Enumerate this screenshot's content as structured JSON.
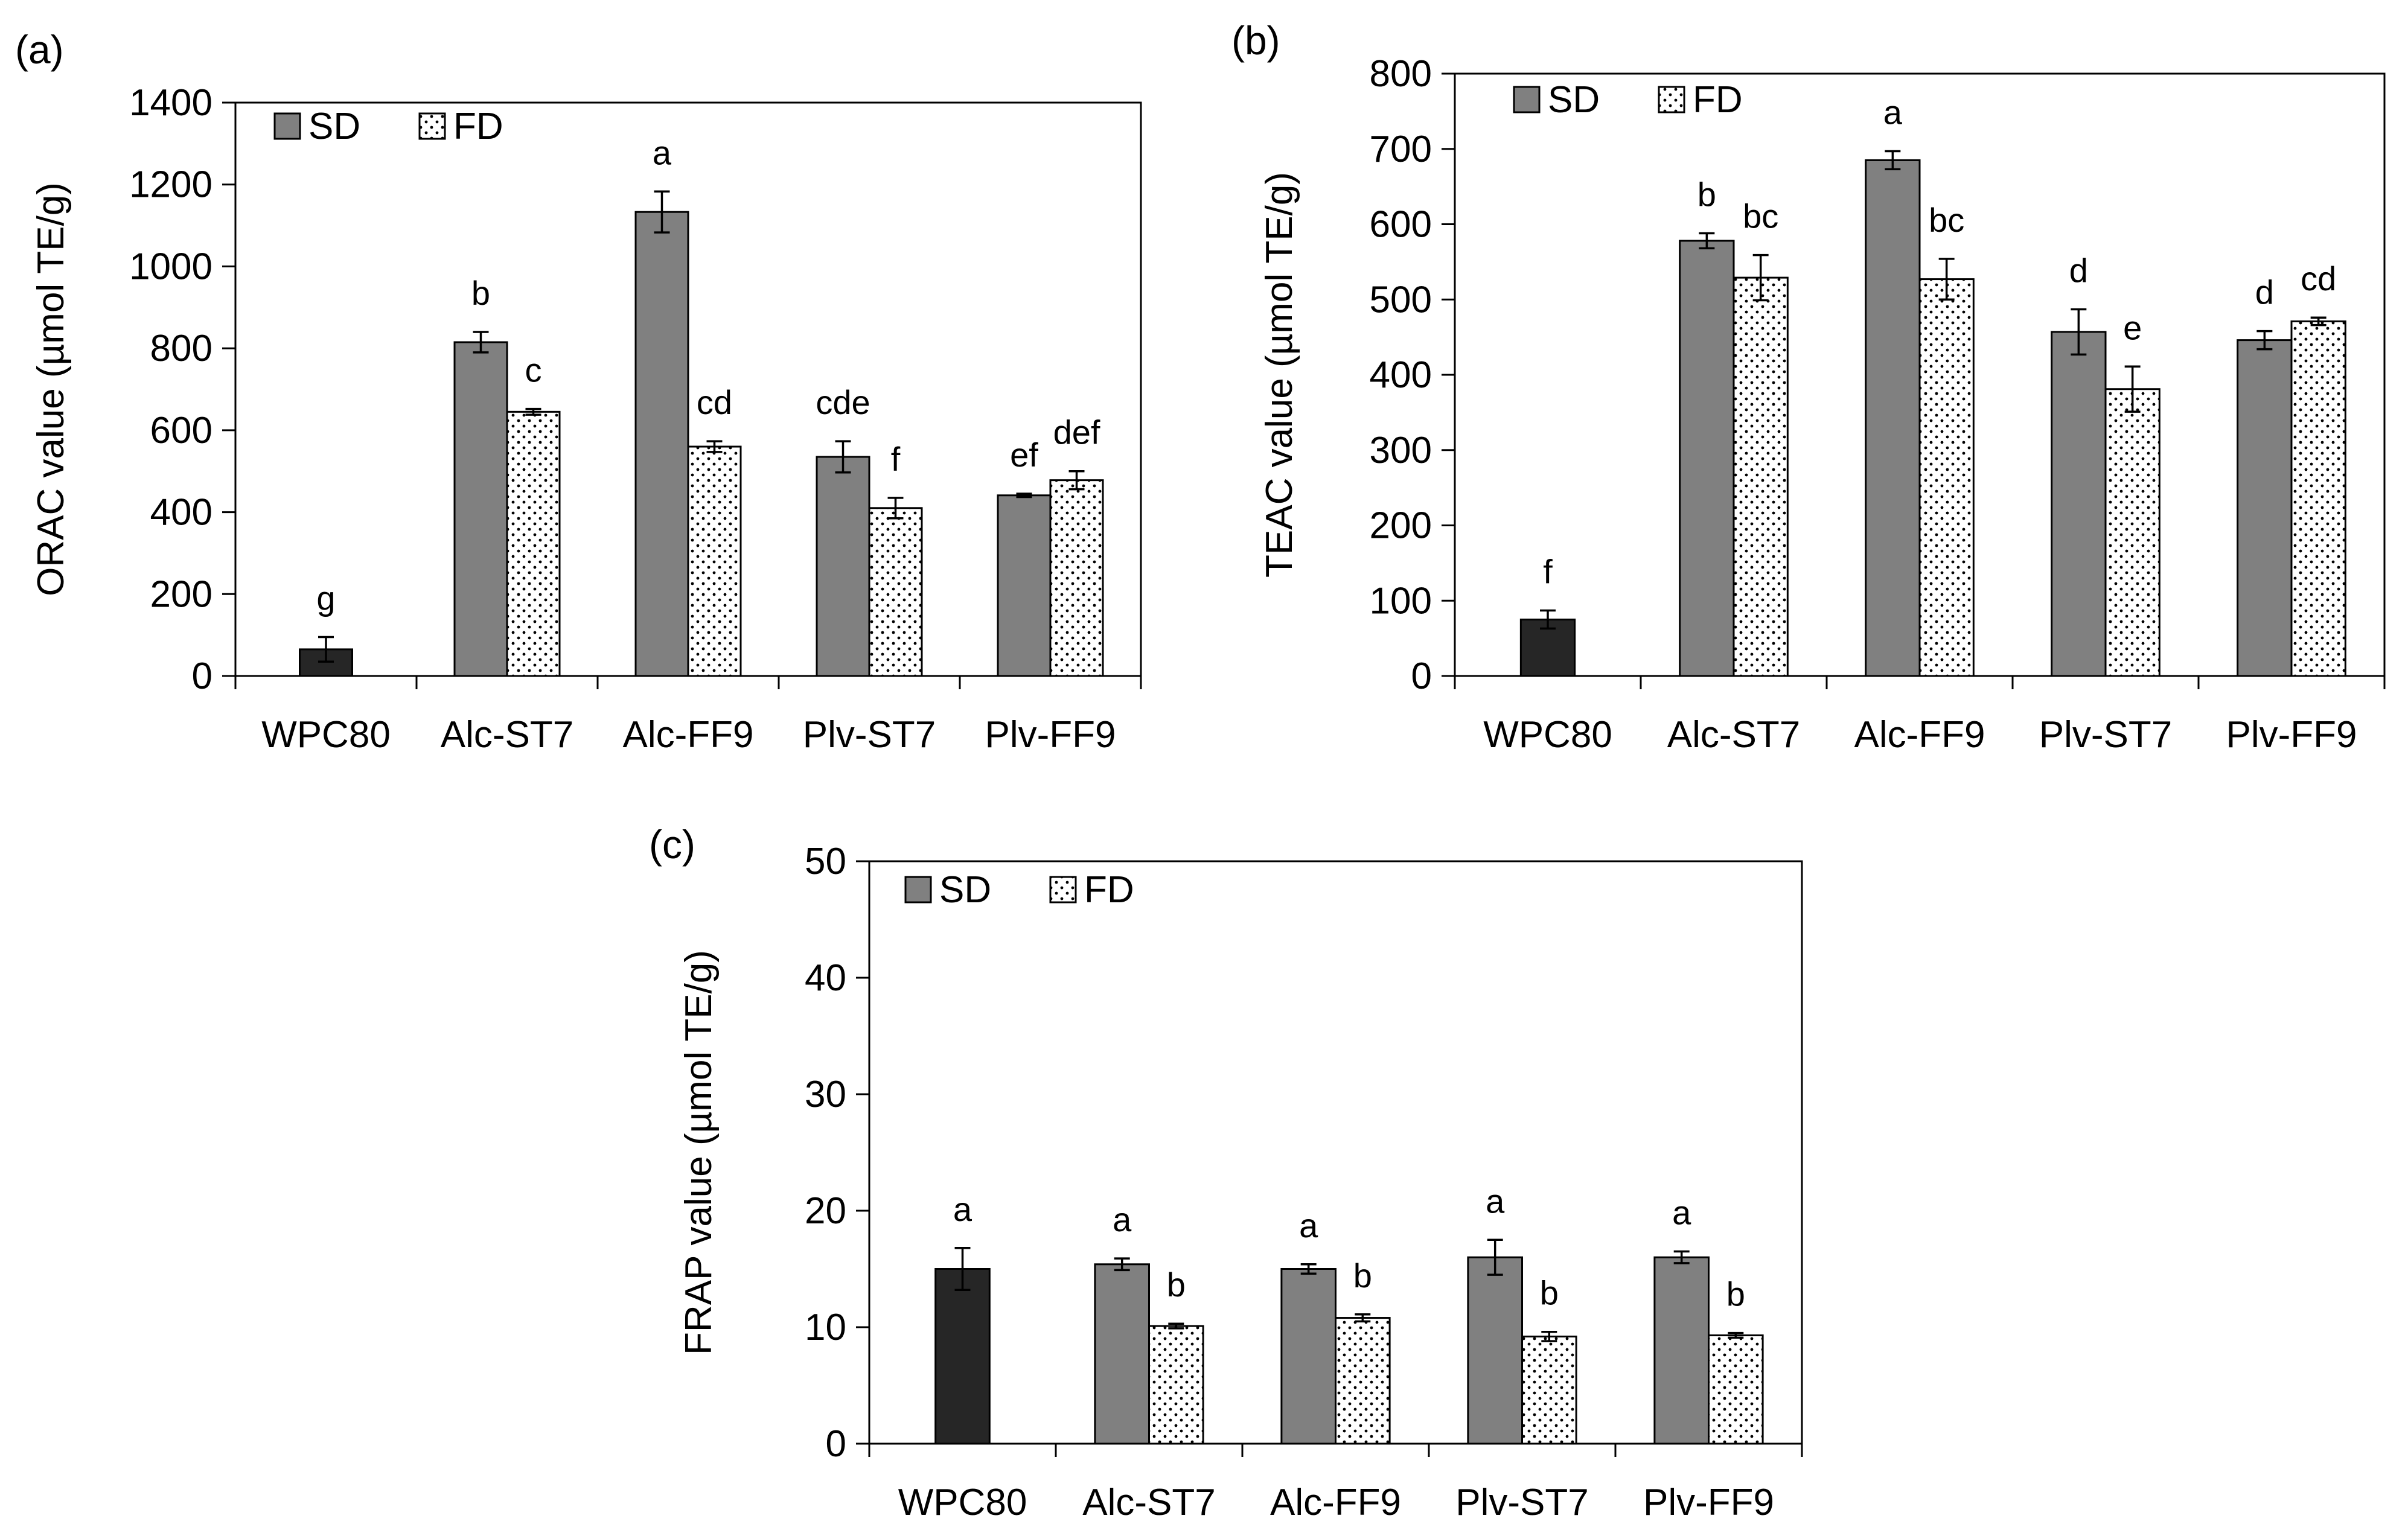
{
  "colors": {
    "sd_fill": "#808080",
    "wpc_fill": "#262626",
    "fd_fill": "#ffffff",
    "axis": "#000000"
  },
  "chart_data": [
    {
      "id": "a",
      "panel_label": "(a)",
      "type": "bar",
      "ylabel": "ORAC value (µmol TE/g)",
      "ylim": [
        0,
        1400
      ],
      "yticks": [
        "0",
        "200",
        "400",
        "600",
        "800",
        "1000",
        "1200",
        "1400"
      ],
      "categories": [
        "WPC80",
        "Alc-ST7",
        "Alc-FF9",
        "Plv-ST7",
        "Plv-FF9"
      ],
      "legend": [
        "SD",
        "FD"
      ],
      "series": [
        {
          "name": "SD",
          "values": [
            65,
            815,
            1133,
            535,
            441
          ],
          "errors": [
            30,
            25,
            50,
            38,
            4
          ],
          "labels": [
            "g",
            "b",
            "a",
            "cde",
            "ef"
          ]
        },
        {
          "name": "FD",
          "values": [
            null,
            645,
            560,
            410,
            478
          ],
          "errors": [
            null,
            7,
            13,
            25,
            22
          ],
          "labels": [
            null,
            "c",
            "cd",
            "f",
            "def"
          ]
        }
      ]
    },
    {
      "id": "b",
      "panel_label": "(b)",
      "type": "bar",
      "ylabel": "TEAC value (µmol TE/g)",
      "ylim": [
        0,
        800
      ],
      "yticks": [
        "0",
        "100",
        "200",
        "300",
        "400",
        "500",
        "600",
        "700",
        "800"
      ],
      "categories": [
        "WPC80",
        "Alc-ST7",
        "Alc-FF9",
        "Plv-ST7",
        "Plv-FF9"
      ],
      "legend": [
        "SD",
        "FD"
      ],
      "series": [
        {
          "name": "SD",
          "values": [
            75,
            578,
            685,
            457,
            446
          ],
          "errors": [
            12,
            10,
            12,
            30,
            12
          ],
          "labels": [
            "f",
            "b",
            "a",
            "d",
            "d"
          ]
        },
        {
          "name": "FD",
          "values": [
            null,
            529,
            527,
            381,
            471
          ],
          "errors": [
            null,
            30,
            27,
            30,
            5
          ],
          "labels": [
            null,
            "bc",
            "bc",
            "e",
            "cd"
          ]
        }
      ]
    },
    {
      "id": "c",
      "panel_label": "(c)",
      "type": "bar",
      "ylabel": "FRAP value (µmol TE/g)",
      "ylim": [
        0,
        50
      ],
      "yticks": [
        "0",
        "10",
        "20",
        "30",
        "40",
        "50"
      ],
      "categories": [
        "WPC80",
        "Alc-ST7",
        "Alc-FF9",
        "Plv-ST7",
        "Plv-FF9"
      ],
      "legend": [
        "SD",
        "FD"
      ],
      "series": [
        {
          "name": "SD",
          "values": [
            15,
            15.4,
            15,
            16,
            16
          ],
          "errors": [
            1.8,
            0.5,
            0.4,
            1.5,
            0.5
          ],
          "labels": [
            "a",
            "a",
            "a",
            "a",
            "a"
          ]
        },
        {
          "name": "FD",
          "values": [
            null,
            10.1,
            10.8,
            9.2,
            9.3
          ],
          "errors": [
            null,
            0.2,
            0.3,
            0.4,
            0.2
          ],
          "labels": [
            null,
            "b",
            "b",
            "b",
            "b"
          ]
        }
      ]
    }
  ]
}
